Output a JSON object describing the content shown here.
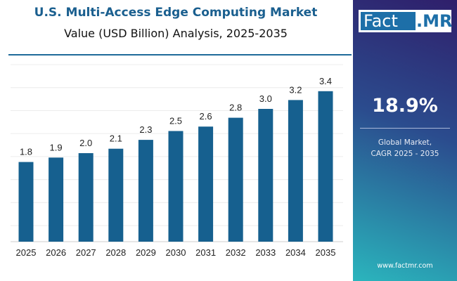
{
  "chart_data": {
    "type": "bar",
    "title": "U.S. Multi-Access Edge Computing Market",
    "subtitle": "Value (USD Billion) Analysis, 2025-2035",
    "categories": [
      "2025",
      "2026",
      "2027",
      "2028",
      "2029",
      "2030",
      "2031",
      "2032",
      "2033",
      "2034",
      "2035"
    ],
    "values": [
      1.8,
      1.9,
      2.0,
      2.1,
      2.3,
      2.5,
      2.6,
      2.8,
      3.0,
      3.2,
      3.4
    ],
    "data_labels": [
      "1.8",
      "1.9",
      "2.0",
      "2.1",
      "2.3",
      "2.5",
      "2.6",
      "2.8",
      "3.0",
      "3.2",
      "3.4"
    ],
    "xlabel": "",
    "ylabel": "",
    "ylim": [
      0,
      4
    ],
    "grid": true,
    "bar_color": "#16608f"
  },
  "sidebar": {
    "logo": {
      "left": "Fact",
      "right": ".MR"
    },
    "cagr_value": "18.9%",
    "cagr_label_line1": "Global Market,",
    "cagr_label_line2": "CAGR 2025 - 2035",
    "website": "www.factmr.com"
  }
}
